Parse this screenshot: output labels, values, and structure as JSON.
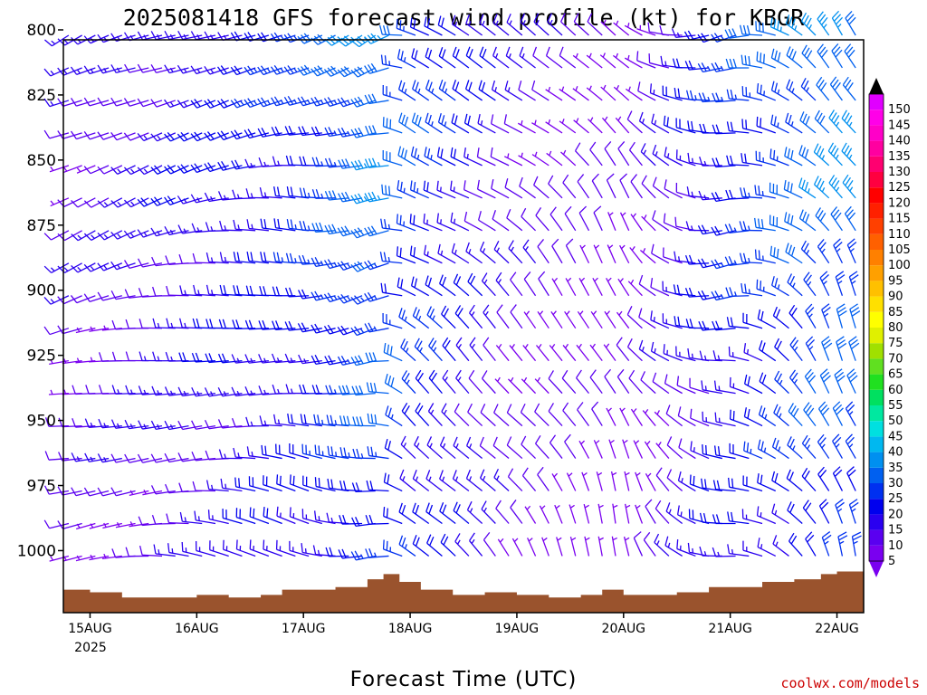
{
  "chart_data": {
    "type": "wind-barb",
    "title": "2025081418 GFS forecast wind profile (kt) for KBGR",
    "xlabel": "Forecast Time (UTC)",
    "credit": "coolwx.com/models",
    "x_ticks": [
      "15AUG",
      "16AUG",
      "17AUG",
      "18AUG",
      "19AUG",
      "20AUG",
      "21AUG",
      "22AUG"
    ],
    "x_year_label": "2025",
    "y_ticks": [
      "800",
      "825",
      "850",
      "875",
      "900",
      "925",
      "950",
      "975",
      "1000"
    ],
    "yrange_hpa": [
      800,
      1020
    ],
    "xrange_days": [
      14.75,
      22.25
    ],
    "color_scale_kt": [
      5,
      10,
      15,
      20,
      25,
      30,
      35,
      40,
      45,
      50,
      55,
      60,
      65,
      70,
      75,
      80,
      85,
      90,
      95,
      100,
      105,
      110,
      115,
      120,
      125,
      130,
      135,
      140,
      145,
      150
    ],
    "terrain_color": "#9a532d",
    "wind_samples_kt": [
      {
        "time": "15AUG00",
        "speed": 10,
        "dir": 240
      },
      {
        "time": "16AUG00",
        "speed": 15,
        "dir": 250
      },
      {
        "time": "17AUG00",
        "speed": 20,
        "dir": 260
      },
      {
        "time": "17AUG18",
        "speed": 30,
        "dir": 240
      },
      {
        "time": "18AUG00",
        "speed": 25,
        "dir": 290
      },
      {
        "time": "19AUG00",
        "speed": 10,
        "dir": 300
      },
      {
        "time": "20AUG00",
        "speed": 5,
        "dir": 320
      },
      {
        "time": "21AUG00",
        "speed": 20,
        "dir": 250
      },
      {
        "time": "22AUG00",
        "speed": 30,
        "dir": 320
      }
    ]
  }
}
